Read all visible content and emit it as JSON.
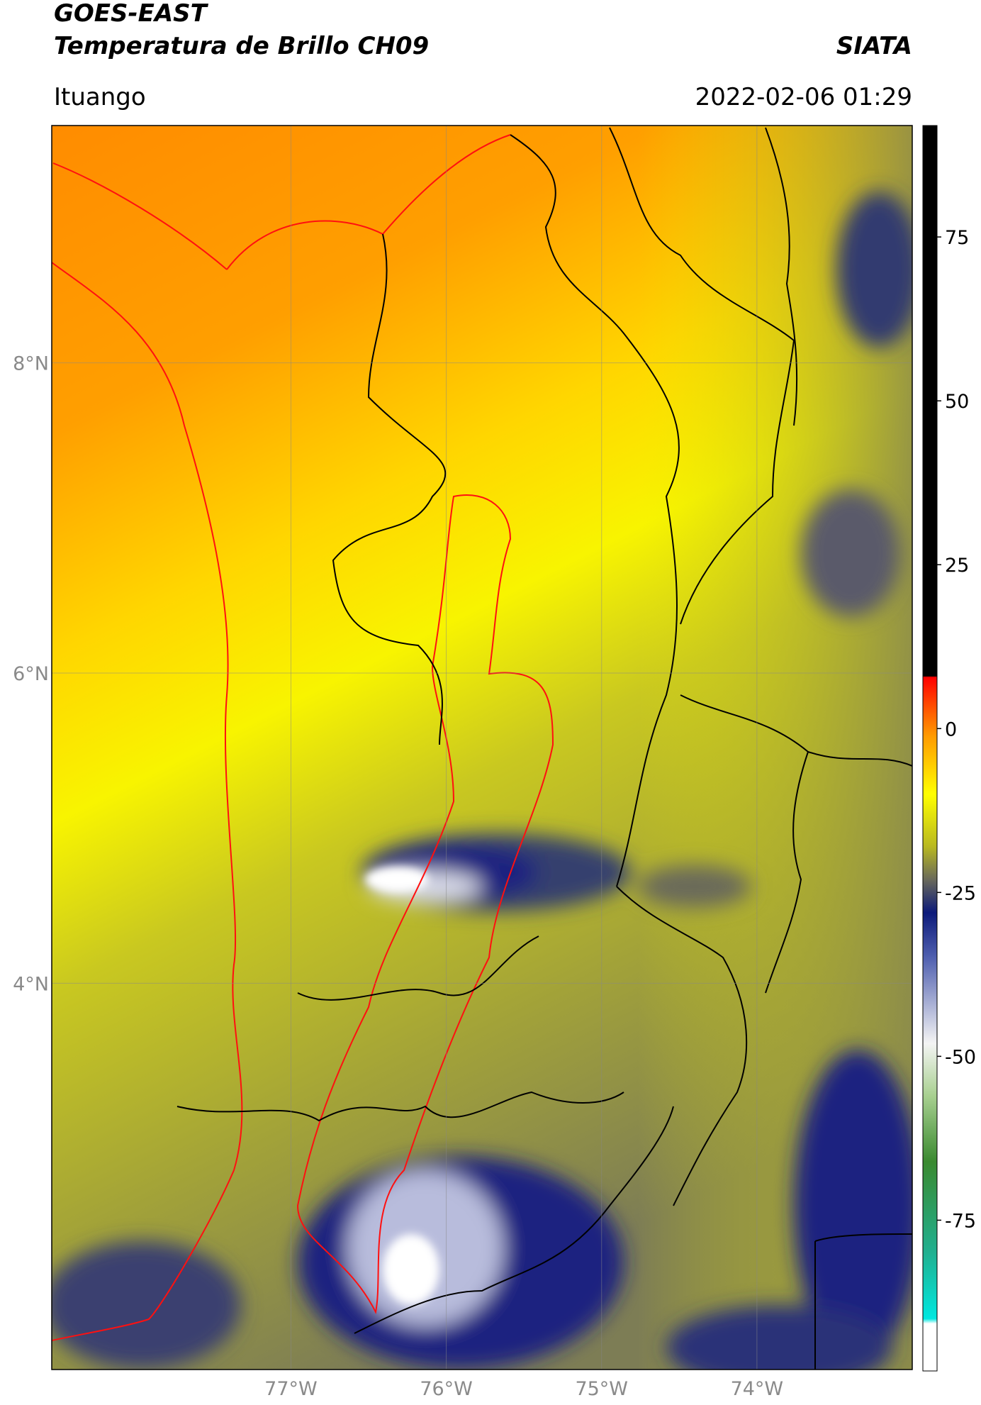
{
  "chart_data": {
    "type": "map",
    "title": "GOES-EAST",
    "subtitle": "Temperatura de Brillo CH09",
    "source": "SIATA",
    "location": "Ituango",
    "datetime": "2022-02-06 01:29",
    "xlim": [
      -78.54,
      -73.0
    ],
    "ylim": [
      1.51,
      9.53
    ],
    "xticks": [
      {
        "value": -77,
        "label": "77°W"
      },
      {
        "value": -76,
        "label": "76°W"
      },
      {
        "value": -75,
        "label": "75°W"
      },
      {
        "value": -74,
        "label": "74°W"
      }
    ],
    "yticks": [
      {
        "value": 8,
        "label": "8°N"
      },
      {
        "value": 6,
        "label": "6°N"
      },
      {
        "value": 4,
        "label": "4°N"
      }
    ],
    "grid": true,
    "colorbar": {
      "lim": [
        -98,
        92
      ],
      "ticks": [
        75,
        50,
        25,
        0,
        -25,
        -50,
        -75
      ]
    }
  }
}
